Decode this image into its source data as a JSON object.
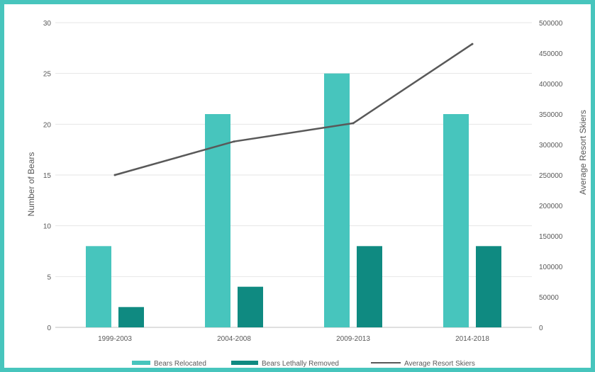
{
  "chart_data": {
    "type": "bar",
    "categories": [
      "1999-2003",
      "2004-2008",
      "2009-2013",
      "2014-2018"
    ],
    "series": [
      {
        "name": "Bears Relocated",
        "type": "bar",
        "axis": "left",
        "color": "#47c5bd",
        "values": [
          8,
          21,
          25,
          21
        ]
      },
      {
        "name": "Bears Lethally Removed",
        "type": "bar",
        "axis": "left",
        "color": "#0f8a81",
        "values": [
          2,
          4,
          8,
          8
        ]
      },
      {
        "name": "Average Resort Skiers",
        "type": "line",
        "axis": "right",
        "color": "#595959",
        "values": [
          250000,
          305000,
          335000,
          465000
        ]
      }
    ],
    "ylabel": "Number of Bears",
    "y2label": "Average Resort Skiers",
    "ylim": [
      0,
      30
    ],
    "y2lim": [
      0,
      500000
    ],
    "yticks": [
      "0",
      "5",
      "10",
      "15",
      "20",
      "25",
      "30"
    ],
    "y2ticks": [
      "0",
      "50000",
      "100000",
      "150000",
      "200000",
      "250000",
      "300000",
      "350000",
      "400000",
      "450000",
      "500000"
    ],
    "grid": true,
    "legend_position": "bottom"
  }
}
